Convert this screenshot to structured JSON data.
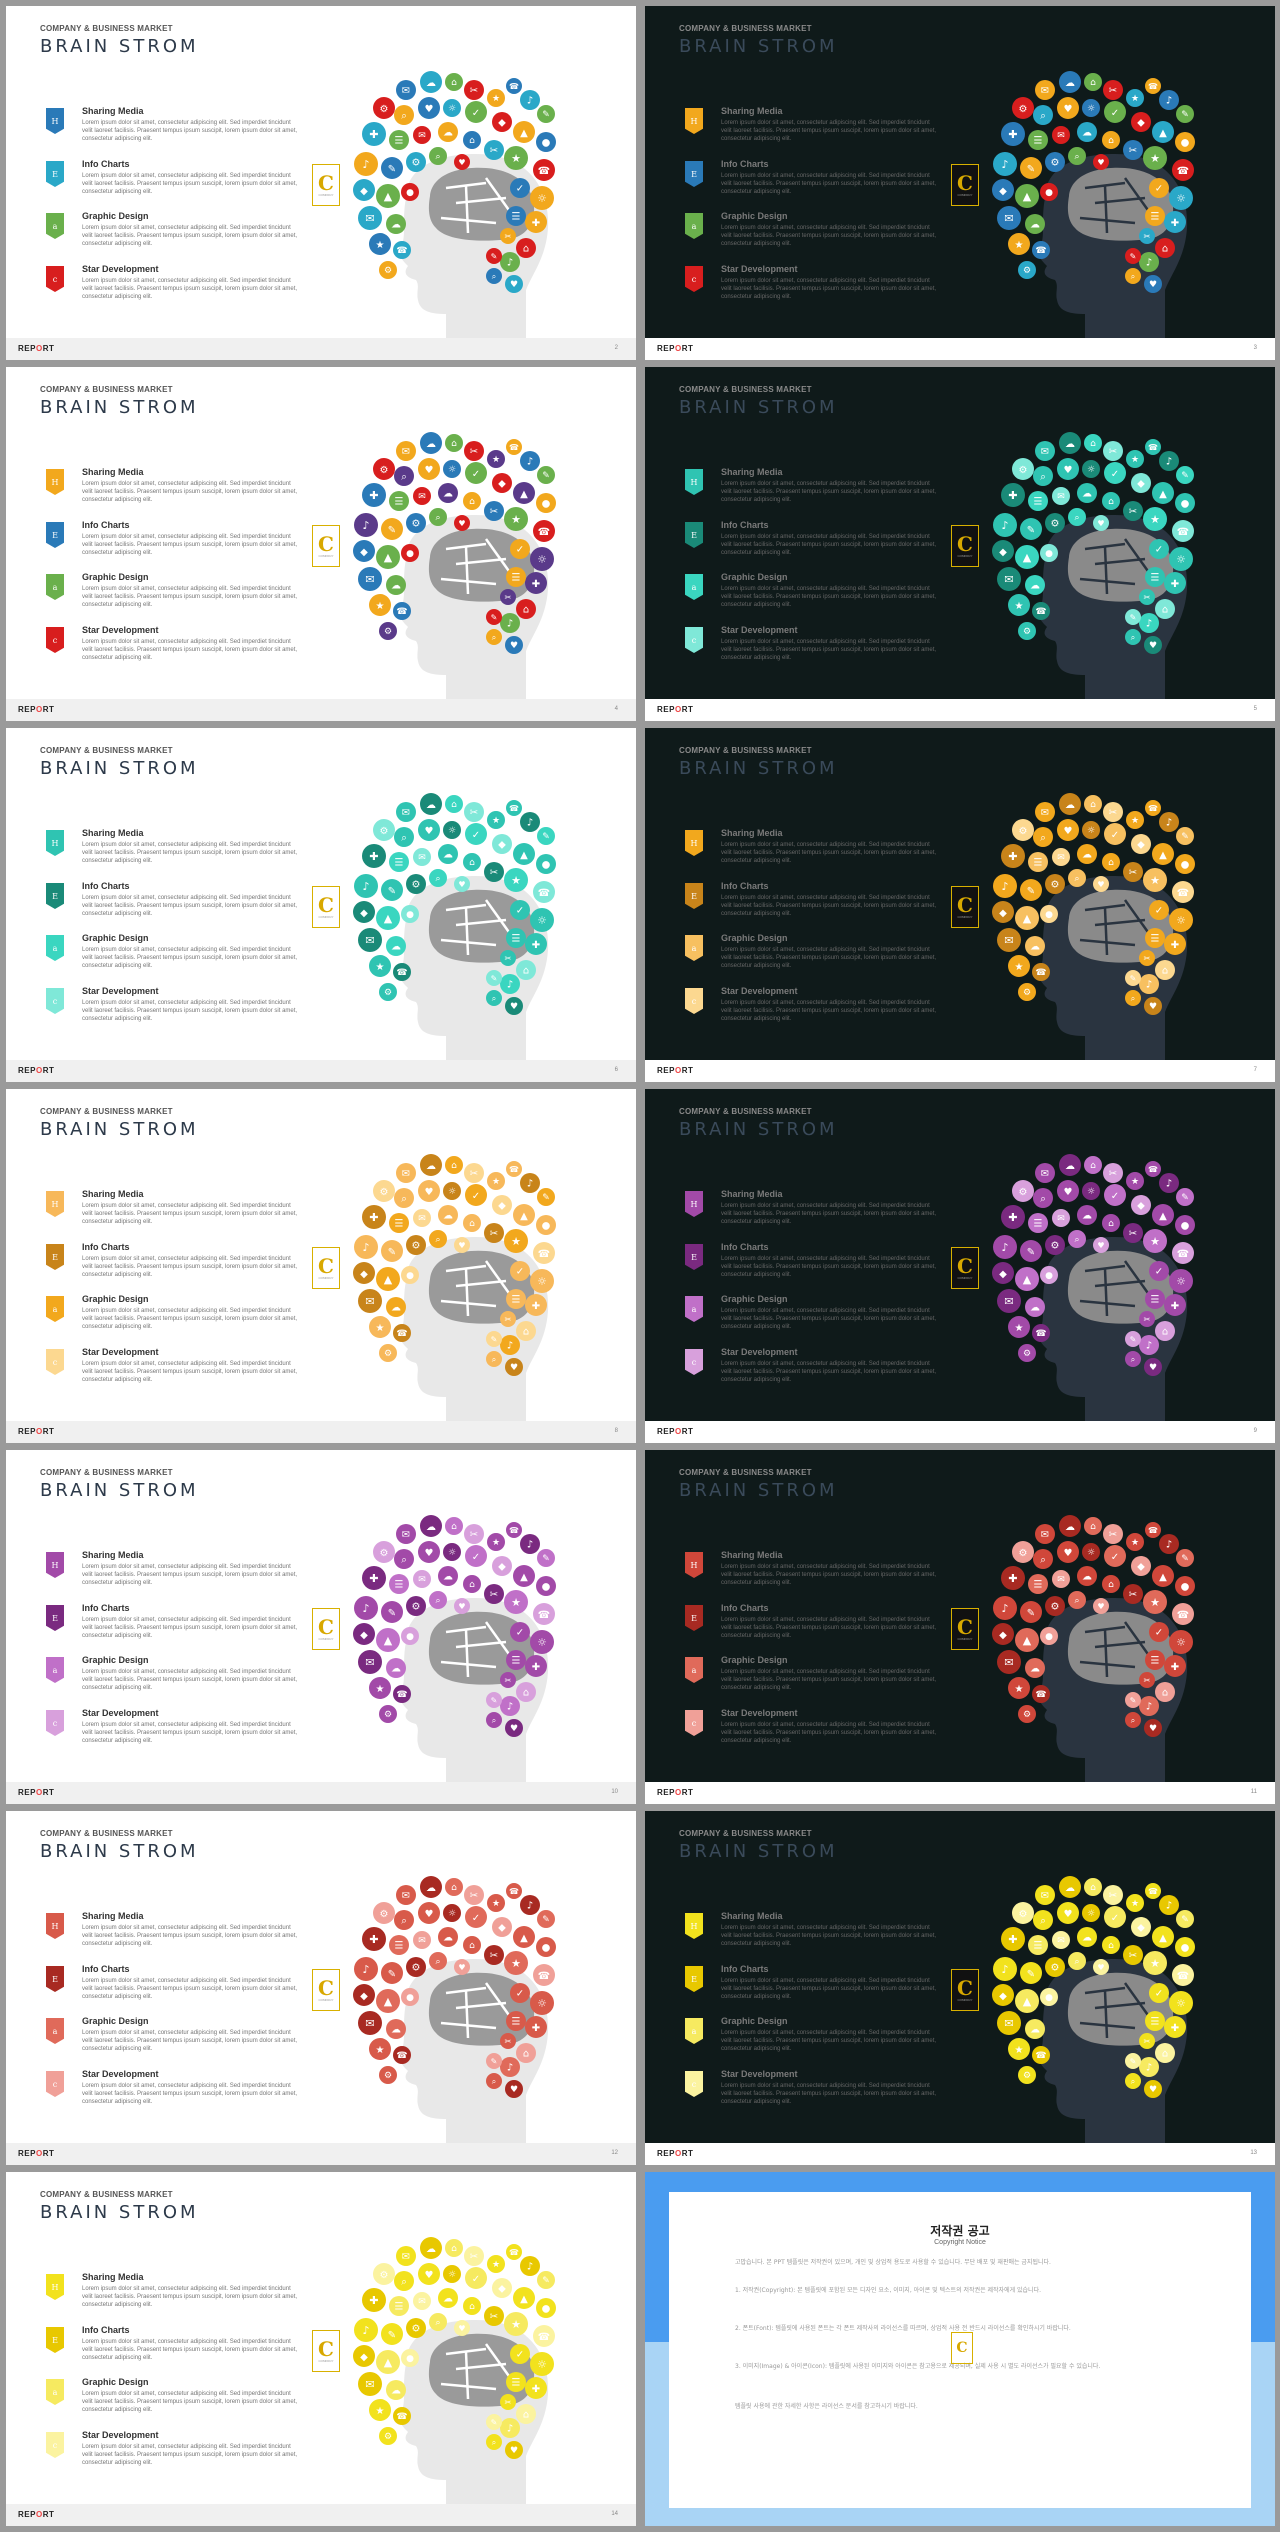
{
  "deck": {
    "kicker": "COMPANY & BUSINESS MARKET",
    "title": "BRAIN STROM",
    "footer_label_pre": "REP",
    "footer_label_o": "O",
    "footer_label_post": "RT",
    "logo_letter": "C",
    "logo_sub": "COMPANY",
    "items": [
      {
        "badge": "H",
        "heading": "Sharing Media",
        "body": "Lorem ipsum dolor sit amet, consectetur adipiscing elit. Sed imperdiet tincidunt velit laoreet facilisis. Praesent tempus ipsum suscipit, lorem ipsum dolor sit amet, consectetur adipiscing elit."
      },
      {
        "badge": "E",
        "heading": "Info Charts",
        "body": "Lorem ipsum dolor sit amet, consectetur adipiscing elit. Sed imperdiet tincidunt velit laoreet facilisis. Praesent tempus ipsum suscipit, lorem ipsum dolor sit amet, consectetur adipiscing elit."
      },
      {
        "badge": "a",
        "heading": "Graphic Design",
        "body": "Lorem ipsum dolor sit amet, consectetur adipiscing elit. Sed imperdiet tincidunt velit laoreet facilisis. Praesent tempus ipsum suscipit, lorem ipsum dolor sit amet, consectetur adipiscing elit."
      },
      {
        "badge": "c",
        "heading": "Star Development",
        "body": "Lorem ipsum dolor sit amet, consectetur adipiscing elit. Sed imperdiet tincidunt velit laoreet facilisis. Praesent tempus ipsum suscipit, lorem ipsum dolor sit amet, consectetur adipiscing elit."
      }
    ]
  },
  "slides": [
    {
      "page": "2",
      "theme": "light",
      "colors": [
        "#2a7ab8",
        "#2aa8c8",
        "#6ab04c",
        "#d81e1e",
        "#f2a81d"
      ]
    },
    {
      "page": "3",
      "theme": "dark",
      "colors": [
        "#f2a81d",
        "#2a7ab8",
        "#6ab04c",
        "#d81e1e",
        "#2aa8c8"
      ]
    },
    {
      "page": "4",
      "theme": "light",
      "colors": [
        "#f2a81d",
        "#2a7ab8",
        "#6ab04c",
        "#d81e1e",
        "#5a3a8a"
      ]
    },
    {
      "page": "5",
      "theme": "dark",
      "colors": [
        "#2fc4b2",
        "#1a8a78",
        "#3ad6c0",
        "#7fe8d8",
        "#2fc4b2"
      ]
    },
    {
      "page": "6",
      "theme": "light",
      "colors": [
        "#2fc4b2",
        "#1a8a78",
        "#3ad6c0",
        "#7fe8d8",
        "#2fc4b2"
      ]
    },
    {
      "page": "7",
      "theme": "dark",
      "colors": [
        "#f2a81d",
        "#c8841a",
        "#f7c060",
        "#fcd890",
        "#f2a81d"
      ]
    },
    {
      "page": "8",
      "theme": "light",
      "colors": [
        "#f7b85a",
        "#c8841a",
        "#f2a81d",
        "#fcd890",
        "#f7b85a"
      ]
    },
    {
      "page": "9",
      "theme": "dark",
      "colors": [
        "#a24aa8",
        "#7a2a80",
        "#c070c8",
        "#d8a0dc",
        "#a24aa8"
      ]
    },
    {
      "page": "10",
      "theme": "light",
      "colors": [
        "#a24aa8",
        "#7a2a80",
        "#c070c8",
        "#d8a0dc",
        "#a24aa8"
      ]
    },
    {
      "page": "11",
      "theme": "dark",
      "colors": [
        "#d0473a",
        "#a82a22",
        "#e06a5a",
        "#f0a098",
        "#d0473a"
      ]
    },
    {
      "page": "12",
      "theme": "light",
      "colors": [
        "#d85a4a",
        "#a82a22",
        "#e06a5a",
        "#f0a098",
        "#d85a4a"
      ]
    },
    {
      "page": "13",
      "theme": "dark",
      "colors": [
        "#f2e21d",
        "#e8c800",
        "#f6ea60",
        "#fbf3a0",
        "#f2e21d"
      ]
    },
    {
      "page": "14",
      "theme": "light",
      "colors": [
        "#f2e21d",
        "#e8c800",
        "#f6ea60",
        "#fbf3a0",
        "#f2e21d"
      ]
    }
  ],
  "copyright": {
    "title": "저작권 공고",
    "subtitle": "Copyright Notice",
    "paragraphs": [
      "고맙습니다. 본 PPT 템플릿은 저작권이 있으며, 개인 및 상업적 용도로 사용할 수 있습니다. 무단 배포 및 재판매는 금지됩니다.",
      "1. 저작권(Copyright): 본 템플릿에 포함된 모든 디자인 요소, 이미지, 아이콘 및 텍스트의 저작권은 제작자에게 있습니다.",
      "2. 폰트(Font): 템플릿에 사용된 폰트는 각 폰트 제작사의 라이선스를 따르며, 상업적 사용 전 반드시 라이선스를 확인하시기 바랍니다.",
      "3. 이미지(Image) & 아이콘(Icon): 템플릿에 사용된 이미지와 아이콘은 참고용으로 제공되며, 실제 사용 시 별도 라이선스가 필요할 수 있습니다.",
      "템플릿 사용에 관한 자세한 사항은 라이선스 문서를 참고하시기 바랍니다."
    ]
  }
}
